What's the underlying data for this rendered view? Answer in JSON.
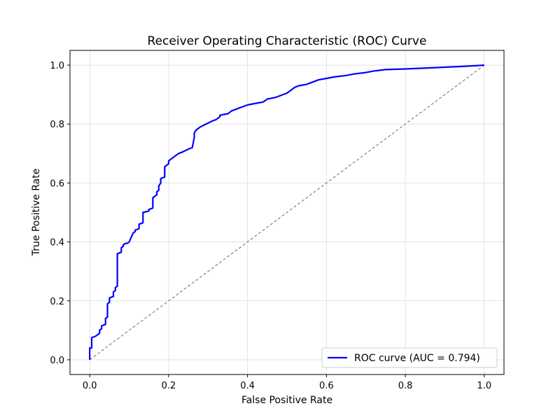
{
  "chart_data": {
    "type": "line",
    "title": "Receiver Operating Characteristic (ROC) Curve",
    "xlabel": "False Positive Rate",
    "ylabel": "True Positive Rate",
    "xlim": [
      -0.05,
      1.05
    ],
    "ylim": [
      -0.05,
      1.05
    ],
    "xticks": [
      0.0,
      0.2,
      0.4,
      0.6,
      0.8,
      1.0
    ],
    "xtick_labels": [
      "0.0",
      "0.2",
      "0.4",
      "0.6",
      "0.8",
      "1.0"
    ],
    "yticks": [
      0.0,
      0.2,
      0.4,
      0.6,
      0.8,
      1.0
    ],
    "ytick_labels": [
      "0.0",
      "0.2",
      "0.4",
      "0.6",
      "0.8",
      "1.0"
    ],
    "grid": true,
    "legend_position": "lower-right",
    "series": [
      {
        "name": "ROC curve (AUC = 0.794)",
        "color": "#0000ff",
        "style": "solid",
        "in_legend": true,
        "x": [
          0.0,
          0.0,
          0.005,
          0.005,
          0.015,
          0.02,
          0.025,
          0.025,
          0.03,
          0.03,
          0.04,
          0.04,
          0.045,
          0.045,
          0.05,
          0.05,
          0.06,
          0.06,
          0.065,
          0.065,
          0.07,
          0.07,
          0.08,
          0.08,
          0.085,
          0.085,
          0.09,
          0.095,
          0.1,
          0.11,
          0.115,
          0.115,
          0.125,
          0.125,
          0.135,
          0.135,
          0.15,
          0.15,
          0.16,
          0.16,
          0.17,
          0.17,
          0.175,
          0.175,
          0.18,
          0.18,
          0.19,
          0.19,
          0.2,
          0.2,
          0.205,
          0.215,
          0.22,
          0.225,
          0.235,
          0.25,
          0.26,
          0.265,
          0.265,
          0.27,
          0.28,
          0.295,
          0.31,
          0.32,
          0.33,
          0.33,
          0.35,
          0.36,
          0.38,
          0.39,
          0.4,
          0.42,
          0.44,
          0.45,
          0.47,
          0.48,
          0.5,
          0.51,
          0.52,
          0.53,
          0.55,
          0.56,
          0.58,
          0.6,
          0.62,
          0.65,
          0.67,
          0.7,
          0.72,
          0.75,
          0.8,
          0.85,
          0.9,
          0.95,
          1.0
        ],
        "y": [
          0.0,
          0.04,
          0.04,
          0.075,
          0.08,
          0.085,
          0.09,
          0.1,
          0.105,
          0.115,
          0.12,
          0.14,
          0.145,
          0.19,
          0.195,
          0.21,
          0.215,
          0.23,
          0.235,
          0.245,
          0.25,
          0.36,
          0.365,
          0.38,
          0.385,
          0.39,
          0.395,
          0.395,
          0.4,
          0.43,
          0.435,
          0.44,
          0.445,
          0.46,
          0.465,
          0.5,
          0.505,
          0.51,
          0.515,
          0.55,
          0.56,
          0.57,
          0.575,
          0.59,
          0.6,
          0.615,
          0.62,
          0.655,
          0.665,
          0.675,
          0.68,
          0.69,
          0.695,
          0.7,
          0.705,
          0.715,
          0.72,
          0.755,
          0.77,
          0.78,
          0.79,
          0.8,
          0.81,
          0.815,
          0.825,
          0.83,
          0.835,
          0.845,
          0.855,
          0.86,
          0.865,
          0.87,
          0.875,
          0.885,
          0.89,
          0.895,
          0.905,
          0.915,
          0.925,
          0.93,
          0.935,
          0.94,
          0.95,
          0.955,
          0.96,
          0.965,
          0.97,
          0.975,
          0.98,
          0.985,
          0.987,
          0.99,
          0.993,
          0.996,
          1.0
        ]
      },
      {
        "color": "#808080",
        "style": "dashed",
        "in_legend": false,
        "x": [
          0.0,
          1.0
        ],
        "y": [
          0.0,
          1.0
        ]
      }
    ]
  }
}
